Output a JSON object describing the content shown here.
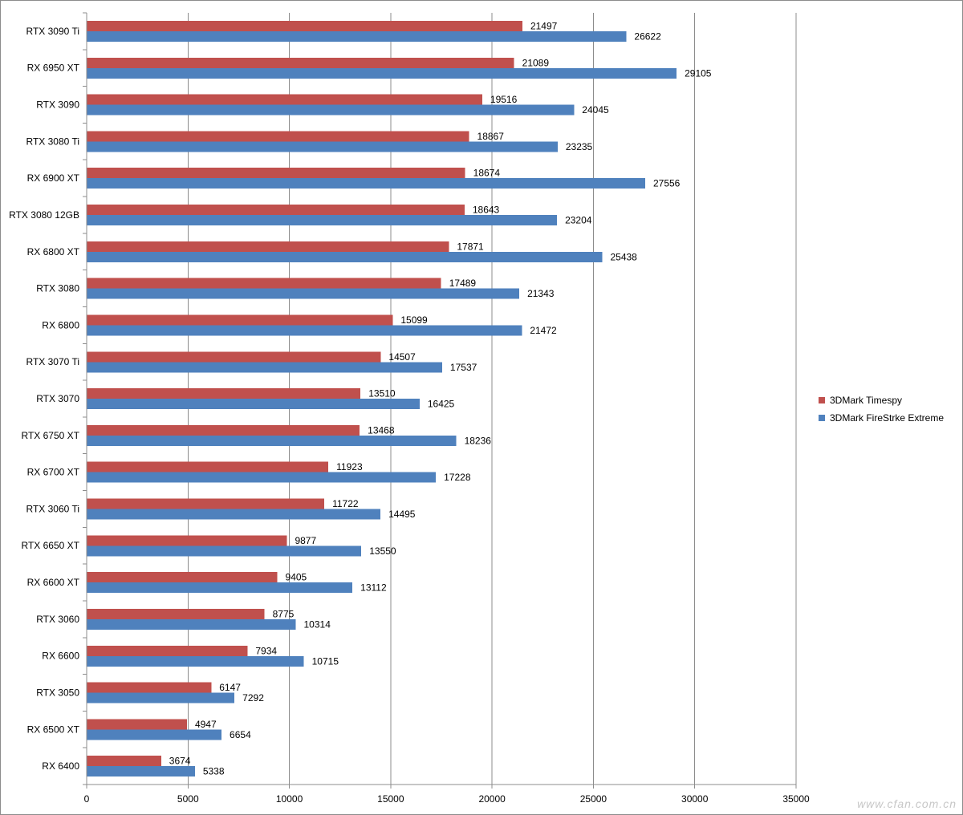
{
  "chart_data": {
    "type": "bar",
    "orientation": "horizontal",
    "categories": [
      "RTX 3090 Ti",
      "RX 6950 XT",
      "RTX 3090",
      "RTX 3080 Ti",
      "RX 6900 XT",
      "RTX 3080 12GB",
      "RX 6800 XT",
      "RTX 3080",
      "RX 6800",
      "RTX 3070 Ti",
      "RTX 3070",
      "RTX 6750 XT",
      "RX 6700 XT",
      "RTX 3060 Ti",
      "RTX 6650 XT",
      "RX 6600 XT",
      "RTX 3060",
      "RX 6600",
      "RTX 3050",
      "RX 6500 XT",
      "RX 6400"
    ],
    "series": [
      {
        "name": "3DMark Timespy",
        "color": "#c0504d",
        "values": [
          21497,
          21089,
          19516,
          18867,
          18674,
          18643,
          17871,
          17489,
          15099,
          14507,
          13510,
          13468,
          11923,
          11722,
          9877,
          9405,
          8775,
          7934,
          6147,
          4947,
          3674
        ]
      },
      {
        "name": "3DMark FireStrke Extreme",
        "color": "#4f81bd",
        "values": [
          26622,
          29105,
          24045,
          23235,
          27556,
          23204,
          25438,
          21343,
          21472,
          17537,
          16425,
          18236,
          17228,
          14495,
          13550,
          13112,
          10314,
          10715,
          7292,
          6654,
          5338
        ]
      }
    ],
    "xlim": [
      0,
      35000
    ],
    "xticks": [
      0,
      5000,
      10000,
      15000,
      20000,
      25000,
      30000,
      35000
    ],
    "title": "",
    "xlabel": "",
    "ylabel": "",
    "grid": "vertical",
    "legend_position": "right"
  },
  "watermark": "www.cfan.com.cn"
}
